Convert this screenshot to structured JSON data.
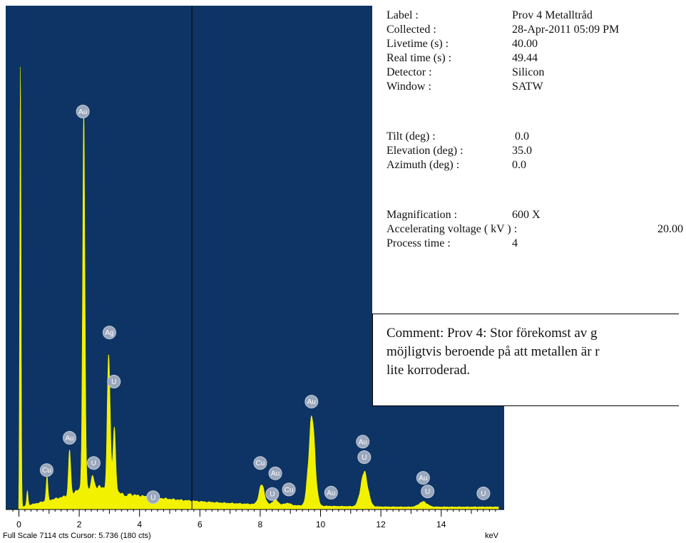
{
  "chart_data": {
    "type": "area",
    "title": "",
    "xlabel": "keV",
    "ylabel": "",
    "xlim": [
      -0.3,
      15.9
    ],
    "xticks": [
      0,
      2,
      4,
      6,
      8,
      10,
      12,
      14
    ],
    "xtick_labels": [
      "0",
      "2",
      "4",
      "6",
      "8",
      "10",
      "12",
      "14"
    ],
    "full_scale_cts": 7114,
    "cursor_kev": 5.736,
    "background_color": "#0d3464",
    "fill_color": "#f2f200",
    "footer_text": "Full Scale 7114 cts Cursor: 5.736  (180 cts)",
    "unit_label": "keV",
    "peaks": [
      {
        "kev": 0.05,
        "cts": 6580
      },
      {
        "kev": 0.28,
        "cts": 290
      },
      {
        "kev": 0.93,
        "cts": 520
      },
      {
        "kev": 1.68,
        "cts": 930
      },
      {
        "kev": 2.15,
        "cts": 5880
      },
      {
        "kev": 2.45,
        "cts": 520
      },
      {
        "kev": 2.98,
        "cts": 2480
      },
      {
        "kev": 3.16,
        "cts": 1200
      },
      {
        "kev": 8.05,
        "cts": 380
      },
      {
        "kev": 8.5,
        "cts": 150
      },
      {
        "kev": 8.9,
        "cts": 100
      },
      {
        "kev": 9.71,
        "cts": 1420
      },
      {
        "kev": 11.45,
        "cts": 570
      },
      {
        "kev": 13.4,
        "cts": 120
      }
    ],
    "labels": [
      {
        "text": "Au",
        "kev": 2.12,
        "cts": 6160
      },
      {
        "text": "Ag",
        "kev": 3.0,
        "cts": 2740
      },
      {
        "text": "U",
        "kev": 3.15,
        "cts": 1980
      },
      {
        "text": "Au",
        "kev": 1.68,
        "cts": 1110
      },
      {
        "text": "U",
        "kev": 2.48,
        "cts": 720
      },
      {
        "text": "Cu",
        "kev": 0.92,
        "cts": 610
      },
      {
        "text": "U",
        "kev": 4.45,
        "cts": 190
      },
      {
        "text": "Cu",
        "kev": 8.0,
        "cts": 720
      },
      {
        "text": "Au",
        "kev": 8.5,
        "cts": 560
      },
      {
        "text": "U",
        "kev": 8.4,
        "cts": 240
      },
      {
        "text": "Cu",
        "kev": 8.95,
        "cts": 310
      },
      {
        "text": "Au",
        "kev": 9.7,
        "cts": 1670
      },
      {
        "text": "Au",
        "kev": 10.35,
        "cts": 260
      },
      {
        "text": "Au",
        "kev": 11.4,
        "cts": 1050
      },
      {
        "text": "U",
        "kev": 11.45,
        "cts": 810
      },
      {
        "text": "Au",
        "kev": 13.4,
        "cts": 490
      },
      {
        "text": "U",
        "kev": 13.55,
        "cts": 280
      },
      {
        "text": "U",
        "kev": 15.4,
        "cts": 250
      }
    ]
  },
  "info": {
    "rows": [
      {
        "label": "Label :",
        "value": "Prov 4 Metalltråd"
      },
      {
        "label": "Collected :",
        "value": "28-Apr-2011 05:09 PM"
      },
      {
        "label": "Livetime (s) :",
        "value": "40.00"
      },
      {
        "label": "Real time (s) :",
        "value": "49.44"
      },
      {
        "label": "Detector :",
        "value": "Silicon"
      },
      {
        "label": "Window :",
        "value": "SATW"
      },
      {
        "label": "Tilt (deg) :",
        "value": " 0.0"
      },
      {
        "label": "Elevation (deg) :",
        "value": "35.0"
      },
      {
        "label": "Azimuth (deg) :",
        "value": "0.0"
      },
      {
        "label": "Magnification :",
        "value": "600 X"
      },
      {
        "label": "Accelerating voltage ( kV ) :",
        "value": "20.00"
      },
      {
        "label": "Process time :",
        "value": "4"
      }
    ]
  },
  "comment": {
    "lines": [
      "Comment: Prov 4: Stor förekomst av g",
      "möjligtvis beroende på att metallen är r",
      "lite korroderad."
    ]
  }
}
